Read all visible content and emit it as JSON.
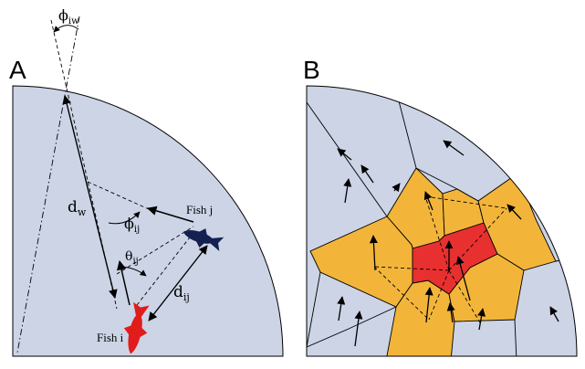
{
  "panels": {
    "a": {
      "label": "A"
    },
    "b": {
      "label": "B"
    }
  },
  "labels": {
    "phi_iw": {
      "base": "ϕ",
      "sub": "iw"
    },
    "d_w": {
      "base": "d",
      "sub": "w"
    },
    "phi_ij": {
      "base": "ϕ",
      "sub": "ij"
    },
    "theta_ij": {
      "base": "θ",
      "sub": "ij"
    },
    "d_ij": {
      "base": "d",
      "sub": "ij"
    },
    "fish_j": "Fish j",
    "fish_i": "Fish i"
  },
  "colors": {
    "tank_fill": "#ccd4e6",
    "focal_cell": "#e83030",
    "neighbor_cell": "#f2b53a",
    "fish_i": "#e21b1b",
    "fish_j": "#152052",
    "stroke": "#000000"
  }
}
